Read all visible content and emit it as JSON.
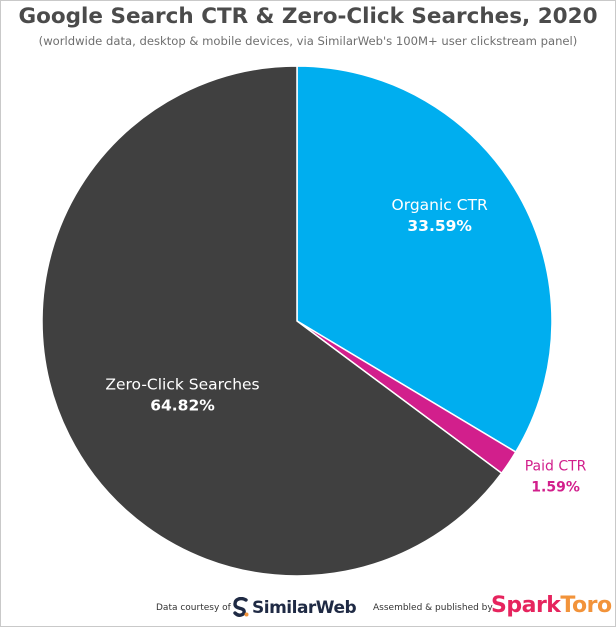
{
  "title": "Google Search CTR & Zero-Click Searches, 2020",
  "subtitle": "(worldwide data, desktop & mobile devices, via SimilarWeb's 100M+ user clickstream panel)",
  "chart_data": {
    "type": "pie",
    "start_angle_deg": 0,
    "direction": "clockwise",
    "slices": [
      {
        "label": "Organic CTR",
        "value": 33.59,
        "value_label": "33.59%",
        "color": "#00aeef",
        "label_color": "#ffffff",
        "value_color": "#ffffff",
        "label_outside": false
      },
      {
        "label": "Paid CTR",
        "value": 1.59,
        "value_label": "1.59%",
        "color": "#d21f8c",
        "label_color": "#d21f8c",
        "value_color": "#d21f8c",
        "label_outside": true
      },
      {
        "label": "Zero-Click Searches",
        "value": 64.82,
        "value_label": "64.82%",
        "color": "#404040",
        "label_color": "#ffffff",
        "value_color": "#ffffff",
        "label_outside": false
      }
    ]
  },
  "footer": {
    "data_credit": "Data courtesy of",
    "similarweb_logo": "SimilarWeb",
    "published_credit": "Assembled & published by",
    "sparktoro_spark": "Spark",
    "sparktoro_toro": "Toro"
  }
}
